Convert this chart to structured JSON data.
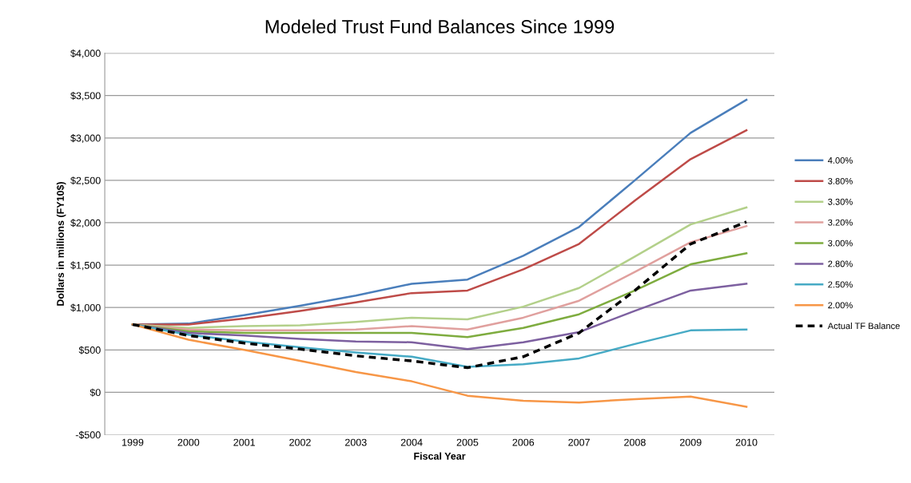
{
  "chart_data": {
    "type": "line",
    "title": "Modeled Trust Fund Balances Since 1999",
    "xlabel": "Fiscal Year",
    "ylabel": "Dollars in millions (FY10$)",
    "categories": [
      "1999",
      "2000",
      "2001",
      "2002",
      "2003",
      "2004",
      "2005",
      "2006",
      "2007",
      "2008",
      "2009",
      "2010"
    ],
    "series": [
      {
        "name": "4.00%",
        "color": "#4a7ebb",
        "values": [
          800,
          810,
          910,
          1020,
          1140,
          1280,
          1330,
          1610,
          1950,
          2500,
          3060,
          3450
        ]
      },
      {
        "name": "3.80%",
        "color": "#be4b48",
        "values": [
          800,
          800,
          870,
          960,
          1060,
          1170,
          1200,
          1450,
          1750,
          2260,
          2750,
          3090
        ]
      },
      {
        "name": "3.30%",
        "color": "#b3d08a",
        "values": [
          800,
          760,
          780,
          790,
          830,
          880,
          860,
          1010,
          1230,
          1600,
          1980,
          2180
        ]
      },
      {
        "name": "3.20%",
        "color": "#e0a09e",
        "values": [
          800,
          740,
          730,
          730,
          740,
          780,
          740,
          880,
          1080,
          1420,
          1770,
          1960
        ]
      },
      {
        "name": "3.00%",
        "color": "#7eac3f",
        "values": [
          800,
          720,
          700,
          700,
          700,
          700,
          650,
          760,
          920,
          1200,
          1510,
          1640
        ]
      },
      {
        "name": "2.80%",
        "color": "#7d60a0",
        "values": [
          800,
          700,
          670,
          630,
          600,
          590,
          510,
          590,
          710,
          960,
          1200,
          1280
        ]
      },
      {
        "name": "2.50%",
        "color": "#46aac5",
        "values": [
          800,
          680,
          600,
          530,
          470,
          420,
          300,
          330,
          400,
          570,
          730,
          740
        ]
      },
      {
        "name": "2.00%",
        "color": "#f79646",
        "values": [
          800,
          620,
          500,
          370,
          240,
          130,
          -40,
          -100,
          -120,
          -80,
          -50,
          -170
        ]
      },
      {
        "name": "Actual TF Balance",
        "color": "#000000",
        "line_style": "dashed",
        "values": [
          800,
          670,
          580,
          510,
          430,
          370,
          290,
          420,
          700,
          1200,
          1750,
          2010
        ]
      }
    ],
    "ylim": [
      -500,
      4000
    ],
    "yticks": [
      {
        "value": -500,
        "label": "-$500"
      },
      {
        "value": 0,
        "label": "$0"
      },
      {
        "value": 500,
        "label": "$500"
      },
      {
        "value": 1000,
        "label": "$1,000"
      },
      {
        "value": 1500,
        "label": "$1,500"
      },
      {
        "value": 2000,
        "label": "$2,000"
      },
      {
        "value": 2500,
        "label": "$2,500"
      },
      {
        "value": 3000,
        "label": "$3,000"
      },
      {
        "value": 3500,
        "label": "$3,500"
      },
      {
        "value": 4000,
        "label": "$4,000"
      }
    ],
    "grid": "y",
    "legend": "right",
    "marker": "none",
    "line_style": "solid"
  }
}
